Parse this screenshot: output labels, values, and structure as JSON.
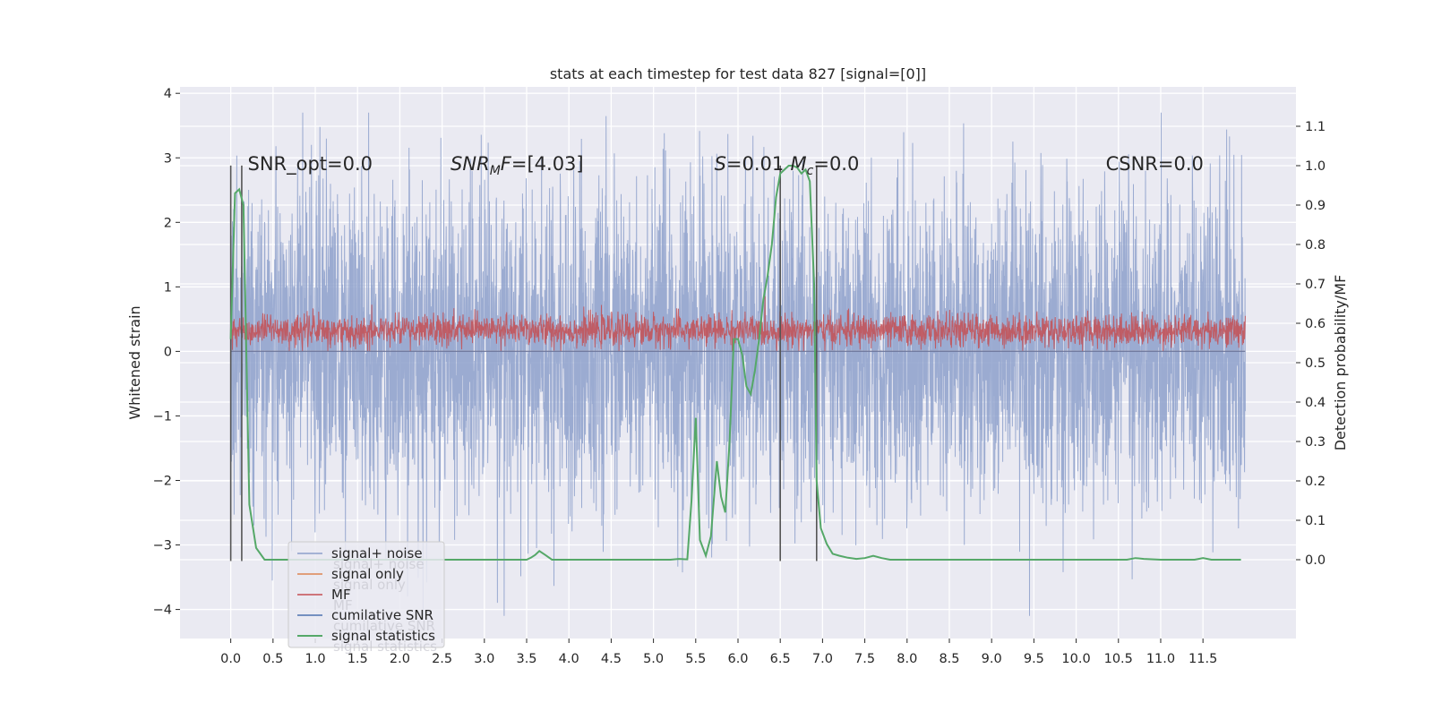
{
  "chart_data": {
    "type": "line",
    "title": "stats at each timestep for test data 827 [signal=[0]]",
    "xlabel": "",
    "ylabel_left": "Whitened strain",
    "ylabel_right": "Detection probability/MF",
    "xlim": [
      -0.6,
      12.6
    ],
    "ylim_left": [
      -4.45,
      4.1
    ],
    "ylim_right": [
      -0.2,
      1.2
    ],
    "grid": true,
    "x_ticks": [
      0.0,
      0.5,
      1.0,
      1.5,
      2.0,
      2.5,
      3.0,
      3.5,
      4.0,
      4.5,
      5.0,
      5.5,
      6.0,
      6.5,
      7.0,
      7.5,
      8.0,
      8.5,
      9.0,
      9.5,
      10.0,
      10.5,
      11.0,
      11.5
    ],
    "x_tick_labels": [
      "0.0",
      "0.5",
      "1.0",
      "1.5",
      "2.0",
      "2.5",
      "3.0",
      "3.5",
      "4.0",
      "4.5",
      "5.0",
      "5.5",
      "6.0",
      "6.5",
      "7.0",
      "7.5",
      "8.0",
      "8.5",
      "9.0",
      "9.5",
      "10.0",
      "10.5",
      "11.0",
      "11.5"
    ],
    "y_ticks_left": [
      -4,
      -3,
      -2,
      -1,
      0,
      1,
      2,
      3,
      4
    ],
    "y_tick_labels_left": [
      "−4",
      "−3",
      "−2",
      "−1",
      "0",
      "1",
      "2",
      "3",
      "4"
    ],
    "y_ticks_right": [
      0.0,
      0.1,
      0.2,
      0.3,
      0.4,
      0.5,
      0.6,
      0.7,
      0.8,
      0.9,
      1.0,
      1.1
    ],
    "y_tick_labels_right": [
      "0.0",
      "0.1",
      "0.2",
      "0.3",
      "0.4",
      "0.5",
      "0.6",
      "0.7",
      "0.8",
      "0.9",
      "1.0",
      "1.1"
    ],
    "vertical_lines_x": [
      0.0,
      0.13,
      6.5,
      6.93
    ],
    "vertical_lines_range_left": [
      -3.25,
      2.88
    ],
    "series": [
      {
        "name": "signal+ noise",
        "color": "#8da0cb",
        "kind": "noise_band",
        "x_range": [
          0.0,
          12.0
        ],
        "approx_envelope": [
          -2.6,
          2.7
        ],
        "approx_extremes": [
          -4.1,
          3.7
        ]
      },
      {
        "name": "signal only",
        "color": "#dd8452",
        "kind": "flat",
        "x_range": [
          0.0,
          12.0
        ],
        "value": 0.0
      },
      {
        "name": "MF",
        "color": "#c44e52",
        "kind": "noise_band",
        "x_range": [
          0.0,
          12.0
        ],
        "approx_envelope": [
          0.05,
          0.6
        ],
        "approx_extremes": [
          0.0,
          0.95
        ]
      },
      {
        "name": "cumilative SNR",
        "color": "#4c72b0",
        "kind": "flat",
        "x_range": [
          0.0,
          12.0
        ],
        "value": 0.0
      },
      {
        "name": "signal statistics",
        "color": "#55a868",
        "axis": "right",
        "x": [
          0.0,
          0.05,
          0.1,
          0.15,
          0.22,
          0.3,
          0.4,
          0.6,
          1.0,
          2.0,
          3.0,
          3.5,
          3.55,
          3.6,
          3.65,
          3.72,
          3.8,
          4.0,
          5.0,
          5.2,
          5.3,
          5.4,
          5.45,
          5.5,
          5.55,
          5.62,
          5.68,
          5.75,
          5.8,
          5.85,
          5.9,
          5.95,
          6.0,
          6.05,
          6.1,
          6.15,
          6.2,
          6.25,
          6.3,
          6.35,
          6.4,
          6.45,
          6.5,
          6.55,
          6.6,
          6.65,
          6.7,
          6.75,
          6.8,
          6.85,
          6.9,
          6.93,
          6.98,
          7.05,
          7.12,
          7.2,
          7.3,
          7.4,
          7.5,
          7.6,
          7.7,
          7.8,
          8.0,
          9.0,
          10.0,
          10.5,
          10.6,
          10.7,
          10.8,
          11.0,
          11.2,
          11.4,
          11.45,
          11.5,
          11.6,
          11.8,
          11.95
        ],
        "y": [
          0.56,
          0.93,
          0.94,
          0.9,
          0.14,
          0.03,
          0.0,
          0.0,
          0.0,
          0.0,
          0.0,
          0.0,
          0.005,
          0.012,
          0.022,
          0.012,
          0.0,
          0.0,
          0.0,
          0.0,
          0.002,
          0.001,
          0.15,
          0.36,
          0.05,
          0.01,
          0.06,
          0.25,
          0.16,
          0.12,
          0.3,
          0.56,
          0.56,
          0.52,
          0.44,
          0.42,
          0.48,
          0.56,
          0.66,
          0.72,
          0.8,
          0.92,
          0.98,
          0.99,
          1.0,
          1.0,
          0.995,
          0.98,
          0.99,
          0.96,
          0.7,
          0.2,
          0.08,
          0.04,
          0.015,
          0.01,
          0.005,
          0.002,
          0.004,
          0.01,
          0.004,
          0.0,
          0.0,
          0.0,
          0.0,
          0.0,
          0.0,
          0.004,
          0.002,
          0.0,
          0.0,
          0.0,
          0.002,
          0.004,
          0.0,
          0.0,
          0.0
        ]
      }
    ],
    "annotations": [
      {
        "id": "snr-opt",
        "text": "SNR_opt=0.0",
        "x": 0.2,
        "y_right": 1.0
      },
      {
        "id": "snr-mf",
        "base": "SNR",
        "sub": "M",
        "after_sub": "F",
        "rest": "=[4.03]",
        "x": 2.6,
        "y_right": 1.0
      },
      {
        "id": "s-stat",
        "base": "S",
        "rest": "=0.01",
        "x": 5.72,
        "y_right": 1.0
      },
      {
        "id": "mc",
        "base": "M",
        "sub": "c",
        "rest": "=0.0",
        "x": 6.62,
        "y_right": 1.0
      },
      {
        "id": "csnr",
        "text": "CSNR=0.0",
        "x": 10.35,
        "y_right": 1.0
      }
    ],
    "legend": {
      "placement": "lower-left",
      "entries": [
        "signal+ noise",
        "signal only",
        "MF",
        "cumilative SNR",
        "signal statistics"
      ],
      "ghost_entries": [
        "signal+ noise",
        "signal only",
        "MF",
        "cumilative SNR",
        "signal statistics"
      ]
    }
  }
}
